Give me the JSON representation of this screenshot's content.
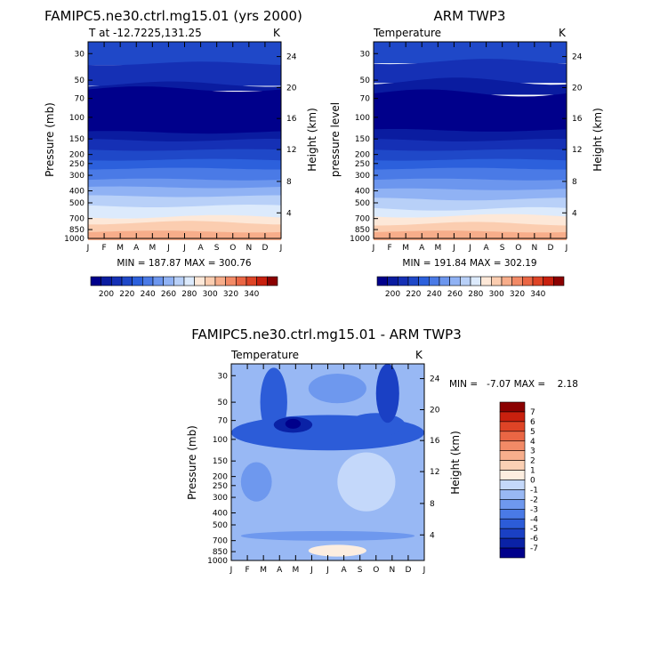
{
  "chart_data": [
    {
      "type": "heatmap",
      "title": "FAMIPC5.ne30.ctrl.mg15.01 (yrs 2000)",
      "left_subtitle": "T at -12.7225,131.25",
      "right_subtitle": "K",
      "xlabel": "",
      "ylabel": "Pressure (mb)",
      "ylabel_right": "Height (km)",
      "x_ticks": [
        "J",
        "F",
        "M",
        "A",
        "M",
        "J",
        "J",
        "A",
        "S",
        "O",
        "N",
        "D",
        "J"
      ],
      "y_ticks": [
        "30",
        "50",
        "70",
        "100",
        "150",
        "200",
        "250",
        "300",
        "400",
        "500",
        "700",
        "850",
        "1000"
      ],
      "y_ticks_right": [
        "24",
        "20",
        "16",
        "12",
        "8",
        "4"
      ],
      "stats": "MIN = 187.87  MAX = 300.76",
      "colorbar": {
        "orientation": "horizontal",
        "labels": [
          "200",
          "220",
          "240",
          "260",
          "280",
          "300",
          "320",
          "340"
        ]
      }
    },
    {
      "type": "heatmap",
      "title": "ARM TWP3",
      "left_subtitle": "Temperature",
      "right_subtitle": "K",
      "xlabel": "",
      "ylabel": "pressure level",
      "ylabel_right": "Height (km)",
      "x_ticks": [
        "J",
        "F",
        "M",
        "A",
        "M",
        "J",
        "J",
        "A",
        "S",
        "O",
        "N",
        "D",
        "J"
      ],
      "y_ticks": [
        "30",
        "50",
        "70",
        "100",
        "150",
        "200",
        "250",
        "300",
        "400",
        "500",
        "700",
        "850",
        "1000"
      ],
      "y_ticks_right": [
        "24",
        "20",
        "16",
        "12",
        "8",
        "4"
      ],
      "stats": "MIN = 191.84  MAX = 302.19",
      "colorbar": {
        "orientation": "horizontal",
        "labels": [
          "200",
          "220",
          "240",
          "260",
          "280",
          "300",
          "320",
          "340"
        ]
      }
    },
    {
      "type": "heatmap",
      "title": "FAMIPC5.ne30.ctrl.mg15.01 - ARM TWP3",
      "left_subtitle": "Temperature",
      "right_subtitle": "K",
      "xlabel": "",
      "ylabel": "Pressure (mb)",
      "ylabel_right": "Height (km)",
      "x_ticks": [
        "J",
        "F",
        "M",
        "A",
        "M",
        "J",
        "J",
        "A",
        "S",
        "O",
        "N",
        "D",
        "J"
      ],
      "y_ticks": [
        "30",
        "50",
        "70",
        "100",
        "150",
        "200",
        "250",
        "300",
        "400",
        "500",
        "700",
        "850",
        "1000"
      ],
      "y_ticks_right": [
        "24",
        "20",
        "16",
        "12",
        "8",
        "4"
      ],
      "stats": "MIN =   -7.07 MAX =    2.18",
      "colorbar": {
        "orientation": "vertical",
        "labels": [
          "7",
          "6",
          "5",
          "4",
          "3",
          "2",
          "1",
          "0",
          "-1",
          "-2",
          "-3",
          "-4",
          "-5",
          "-6",
          "-7"
        ]
      }
    }
  ],
  "colors": {
    "temperature_scale": [
      "#00008b",
      "#0a1ca0",
      "#1530b5",
      "#1f48c8",
      "#2c60dc",
      "#4a7ae6",
      "#6c96ee",
      "#90b2f4",
      "#b8d0f8",
      "#dceafc",
      "#fde8d8",
      "#fbcdb0",
      "#f7ad8a",
      "#f28a66",
      "#ea6644",
      "#de4426",
      "#c8200e",
      "#8b0000"
    ],
    "difference_scale": [
      "#00008b",
      "#0a22a6",
      "#1a40c4",
      "#2c5cd8",
      "#4a7ae6",
      "#6e98ee",
      "#98b8f4",
      "#c4d8fa",
      "#fdeee0",
      "#fbd0b4",
      "#f7ae8c",
      "#f28a66",
      "#ea6644",
      "#de4426",
      "#c8200e",
      "#8b0000"
    ]
  }
}
